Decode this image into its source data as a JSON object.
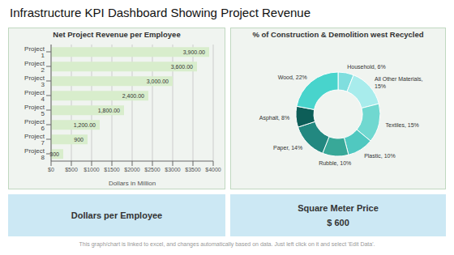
{
  "title": "Infrastructure KPI Dashboard Showing Project Revenue",
  "annotations": [
    "Dollars per Employee",
    "Square Meter Price",
    "$ 600",
    "This graph/chart is linked to excel, and changes automatically based on data. Just left click on it and select 'Edit Data'."
  ],
  "chart_data": [
    {
      "type": "bar",
      "orientation": "horizontal",
      "title": "Net Project Revenue per Employee",
      "categories": [
        "Project 1",
        "Project 2",
        "Project 3",
        "Project 4",
        "Project 5",
        "Project 6",
        "Project 7",
        "Project 8"
      ],
      "values": [
        3900,
        3600,
        3000,
        2400,
        1800,
        1200,
        900,
        300
      ],
      "value_labels": [
        "3,900.00",
        "3,600.00",
        "3,000.00",
        "2,400.00",
        "1,800.00",
        "1,200.00",
        "900",
        "300"
      ],
      "data_labels": true,
      "color": "#d8edcc",
      "xlabel": "Dollars in Million",
      "xlim": [
        0,
        4000
      ],
      "xticks": [
        {
          "value": 0,
          "label": "$0"
        },
        {
          "value": 500,
          "label": "$500"
        },
        {
          "value": 1000,
          "label": "$1000"
        },
        {
          "value": 1500,
          "label": "$1500"
        },
        {
          "value": 2000,
          "label": "$2000"
        },
        {
          "value": 2500,
          "label": "$2500"
        },
        {
          "value": 3000,
          "label": "$3000"
        },
        {
          "value": 3500,
          "label": "$3500"
        },
        {
          "value": 4000,
          "label": "$4000"
        }
      ],
      "grid": true
    },
    {
      "type": "donut",
      "title": "% of Construction & Demolition west Recycled",
      "categories": [
        "Household, 6%",
        "All Other Materials,\n15%",
        "Textiles, 15%",
        "Plastic, 10%",
        "Rubble, 10%",
        "Paper, 14%",
        "Asphalt, 8%",
        "Wood, 22%"
      ],
      "values": [
        6,
        15,
        15,
        10,
        10,
        14,
        8,
        22
      ],
      "colors": [
        "#80dede",
        "#a8ecec",
        "#70d8d0",
        "#50c8c0",
        "#38a898",
        "#228880",
        "#0d5e58",
        "#48d4cc"
      ]
    }
  ]
}
